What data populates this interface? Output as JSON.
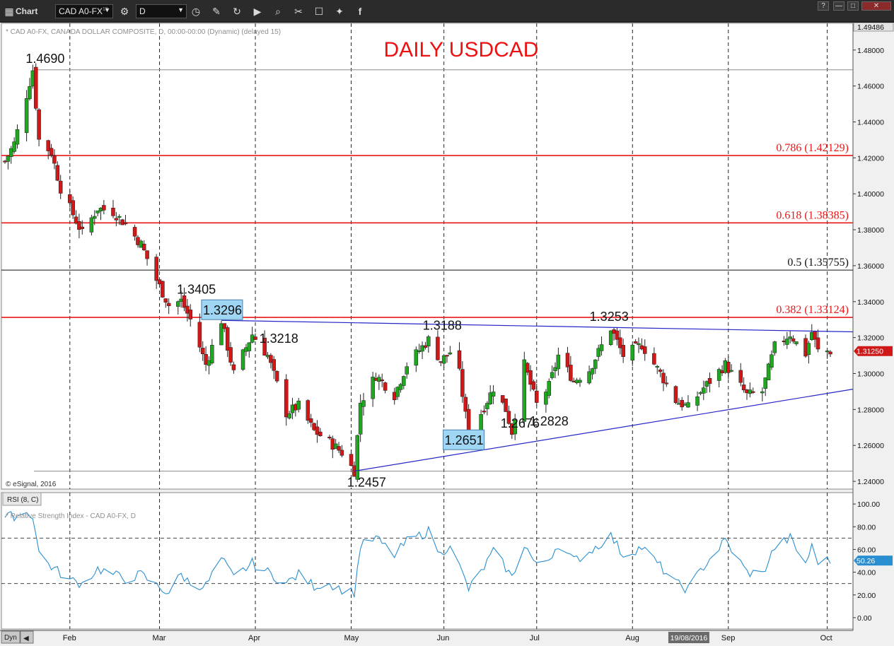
{
  "toolbar": {
    "app_label": "Chart",
    "symbol": "CAD A0-FX",
    "symbol_suffix": "15",
    "interval": "D",
    "icons": [
      "link-settings-icon",
      "clock-icon",
      "pencil-icon",
      "refresh-icon",
      "play-icon",
      "search-icon",
      "tools-icon",
      "comment-icon",
      "twitter-icon",
      "facebook-icon"
    ],
    "window_buttons": [
      "?",
      "—",
      "□",
      "✕"
    ]
  },
  "price_panel": {
    "header": "* CAD A0-FX, CANADA DOLLAR COMPOSITE, D, 00:00-00:00 (Dynamic) (delayed 15)",
    "copyright": "© eSignal, 2016",
    "top_price_badge": "1.49486",
    "last_price_badge": "1.31250",
    "title_annotation": "DAILY USDCAD",
    "y_ticks": [
      "1.48000",
      "1.46000",
      "1.44000",
      "1.42000",
      "1.40000",
      "1.38000",
      "1.36000",
      "1.34000",
      "1.32000",
      "1.30000",
      "1.28000",
      "1.26000",
      "1.24000"
    ]
  },
  "rsi_panel": {
    "tab_label": "RSI (8, C)",
    "header": "* Relative Strength Index - CAD A0-FX, D",
    "last_value_badge": "50.26",
    "y_ticks": [
      "100.00",
      "80.00",
      "60.00",
      "40.00",
      "20.00",
      "0.00"
    ]
  },
  "x_axis": {
    "mode_label": "Dyn",
    "months": [
      "Feb",
      "Mar",
      "Apr",
      "May",
      "Jun",
      "Jul",
      "Aug",
      "Sep",
      "Oct"
    ],
    "cursor_date": "19/08/2016"
  },
  "colors": {
    "up_candle": "#1fa81f",
    "down_candle": "#d01818",
    "fib_line": "#e81818",
    "trendline": "#2626c8",
    "rsi_line": "#2a8fd0",
    "highlight_box": "#9fd6f4"
  },
  "chart_data": {
    "type": "candlestick",
    "title": "DAILY USDCAD",
    "symbol": "CAD A0-FX",
    "interval": "D",
    "ylim": [
      1.2357,
      1.49486
    ],
    "last_price": 1.3125,
    "fib_levels": [
      {
        "label": "0.786 (1.42129)",
        "value": 1.42129,
        "color": "red"
      },
      {
        "label": "0.618 (1.38385)",
        "value": 1.38385,
        "color": "red"
      },
      {
        "label": "0.5 (1.35755)",
        "value": 1.35755,
        "color": "black"
      },
      {
        "label": "0.382 (1.33124)",
        "value": 1.33124,
        "color": "red"
      }
    ],
    "reference_levels": [
      1.469,
      1.2457
    ],
    "annotations": [
      {
        "text": "1.4690",
        "date": "2016-01-20",
        "value": 1.469,
        "boxed": false
      },
      {
        "text": "1.3405",
        "date": "2016-03-08",
        "value": 1.3405,
        "boxed": false
      },
      {
        "text": "1.3296",
        "date": "2016-03-21",
        "value": 1.3296,
        "boxed": true
      },
      {
        "text": "1.3218",
        "date": "2016-03-31",
        "value": 1.3218,
        "boxed": false
      },
      {
        "text": "1.2457",
        "date": "2016-05-03",
        "value": 1.2457,
        "boxed": false
      },
      {
        "text": "1.3188",
        "date": "2016-05-27",
        "value": 1.3188,
        "boxed": false
      },
      {
        "text": "1.2651",
        "date": "2016-06-09",
        "value": 1.2651,
        "boxed": true
      },
      {
        "text": "1.2676",
        "date": "2016-06-23",
        "value": 1.2676,
        "boxed": false
      },
      {
        "text": "1.2828",
        "date": "2016-07-01",
        "value": 1.2828,
        "boxed": false
      },
      {
        "text": "1.3253",
        "date": "2016-07-25",
        "value": 1.3253,
        "boxed": false
      }
    ],
    "trendlines": [
      {
        "name": "upper",
        "from": {
          "date": "2016-03-21",
          "value": 1.3296
        },
        "to": {
          "date": "2016-10-04",
          "value": 1.3232
        }
      },
      {
        "name": "lower",
        "from": {
          "date": "2016-05-03",
          "value": 1.2457
        },
        "to": {
          "date": "2016-10-04",
          "value": 1.2913
        }
      }
    ],
    "x_range": [
      "2016-01-11",
      "2016-10-04"
    ],
    "month_ticks": [
      "2016-02-01",
      "2016-03-01",
      "2016-04-01",
      "2016-05-02",
      "2016-06-01",
      "2016-07-01",
      "2016-08-01",
      "2016-09-01",
      "2016-10-03"
    ],
    "ohlc_keypoints": [
      [
        "2016-01-11",
        1.418
      ],
      [
        "2016-01-14",
        1.428
      ],
      [
        "2016-01-18",
        1.455
      ],
      [
        "2016-01-20",
        1.469
      ],
      [
        "2016-01-22",
        1.43
      ],
      [
        "2016-01-26",
        1.423
      ],
      [
        "2016-01-29",
        1.403
      ],
      [
        "2016-02-03",
        1.385
      ],
      [
        "2016-02-05",
        1.378
      ],
      [
        "2016-02-10",
        1.392
      ],
      [
        "2016-02-15",
        1.39
      ],
      [
        "2016-02-19",
        1.383
      ],
      [
        "2016-02-24",
        1.372
      ],
      [
        "2016-02-29",
        1.352
      ],
      [
        "2016-03-04",
        1.338
      ],
      [
        "2016-03-08",
        1.3405
      ],
      [
        "2016-03-11",
        1.33
      ],
      [
        "2016-03-16",
        1.305
      ],
      [
        "2016-03-21",
        1.3296
      ],
      [
        "2016-03-25",
        1.3
      ],
      [
        "2016-03-31",
        1.3218
      ],
      [
        "2016-04-05",
        1.31
      ],
      [
        "2016-04-11",
        1.278
      ],
      [
        "2016-04-15",
        1.282
      ],
      [
        "2016-04-20",
        1.268
      ],
      [
        "2016-04-25",
        1.262
      ],
      [
        "2016-04-29",
        1.256
      ],
      [
        "2016-05-03",
        1.2457
      ],
      [
        "2016-05-05",
        1.284
      ],
      [
        "2016-05-10",
        1.299
      ],
      [
        "2016-05-16",
        1.288
      ],
      [
        "2016-05-20",
        1.305
      ],
      [
        "2016-05-27",
        1.3188
      ],
      [
        "2016-05-31",
        1.307
      ],
      [
        "2016-06-03",
        1.312
      ],
      [
        "2016-06-06",
        1.3
      ],
      [
        "2016-06-09",
        1.2651
      ],
      [
        "2016-06-13",
        1.278
      ],
      [
        "2016-06-17",
        1.292
      ],
      [
        "2016-06-21",
        1.28
      ],
      [
        "2016-06-23",
        1.2676
      ],
      [
        "2016-06-27",
        1.305
      ],
      [
        "2016-07-01",
        1.2828
      ],
      [
        "2016-07-05",
        1.293
      ],
      [
        "2016-07-08",
        1.31
      ],
      [
        "2016-07-13",
        1.296
      ],
      [
        "2016-07-18",
        1.302
      ],
      [
        "2016-07-25",
        1.3253
      ],
      [
        "2016-07-29",
        1.31
      ],
      [
        "2016-08-04",
        1.316
      ],
      [
        "2016-08-10",
        1.3
      ],
      [
        "2016-08-15",
        1.285
      ],
      [
        "2016-08-19",
        1.281
      ],
      [
        "2016-08-24",
        1.292
      ],
      [
        "2016-08-31",
        1.305
      ],
      [
        "2016-09-07",
        1.288
      ],
      [
        "2016-09-12",
        1.29
      ],
      [
        "2016-09-16",
        1.315
      ],
      [
        "2016-09-21",
        1.322
      ],
      [
        "2016-09-23",
        1.317
      ],
      [
        "2016-09-26",
        1.311
      ],
      [
        "2016-09-28",
        1.323
      ],
      [
        "2016-09-30",
        1.3125
      ]
    ]
  },
  "rsi_data": {
    "type": "line",
    "ylim": [
      -10,
      110
    ],
    "levels": [
      70,
      30
    ],
    "last_value": 50.26,
    "keypoints": [
      [
        "2016-01-11",
        88
      ],
      [
        "2016-01-18",
        92
      ],
      [
        "2016-01-20",
        90
      ],
      [
        "2016-01-22",
        57
      ],
      [
        "2016-01-26",
        45
      ],
      [
        "2016-02-01",
        33
      ],
      [
        "2016-02-05",
        30
      ],
      [
        "2016-02-10",
        43
      ],
      [
        "2016-02-15",
        38
      ],
      [
        "2016-02-19",
        34
      ],
      [
        "2016-02-24",
        38
      ],
      [
        "2016-02-29",
        28
      ],
      [
        "2016-03-04",
        22
      ],
      [
        "2016-03-08",
        38
      ],
      [
        "2016-03-11",
        30
      ],
      [
        "2016-03-16",
        28
      ],
      [
        "2016-03-21",
        52
      ],
      [
        "2016-03-25",
        35
      ],
      [
        "2016-03-31",
        48
      ],
      [
        "2016-04-05",
        40
      ],
      [
        "2016-04-11",
        30
      ],
      [
        "2016-04-15",
        38
      ],
      [
        "2016-04-20",
        28
      ],
      [
        "2016-04-25",
        30
      ],
      [
        "2016-04-29",
        25
      ],
      [
        "2016-05-03",
        22
      ],
      [
        "2016-05-05",
        63
      ],
      [
        "2016-05-10",
        70
      ],
      [
        "2016-05-16",
        55
      ],
      [
        "2016-05-20",
        67
      ],
      [
        "2016-05-27",
        76
      ],
      [
        "2016-05-31",
        55
      ],
      [
        "2016-06-03",
        66
      ],
      [
        "2016-06-06",
        45
      ],
      [
        "2016-06-09",
        25
      ],
      [
        "2016-06-13",
        40
      ],
      [
        "2016-06-17",
        58
      ],
      [
        "2016-06-21",
        44
      ],
      [
        "2016-06-23",
        35
      ],
      [
        "2016-06-27",
        65
      ],
      [
        "2016-07-01",
        45
      ],
      [
        "2016-07-05",
        52
      ],
      [
        "2016-07-08",
        65
      ],
      [
        "2016-07-13",
        50
      ],
      [
        "2016-07-18",
        58
      ],
      [
        "2016-07-25",
        72
      ],
      [
        "2016-07-29",
        55
      ],
      [
        "2016-08-04",
        62
      ],
      [
        "2016-08-10",
        45
      ],
      [
        "2016-08-15",
        30
      ],
      [
        "2016-08-19",
        25
      ],
      [
        "2016-08-24",
        45
      ],
      [
        "2016-08-31",
        68
      ],
      [
        "2016-09-07",
        40
      ],
      [
        "2016-09-12",
        38
      ],
      [
        "2016-09-16",
        62
      ],
      [
        "2016-09-21",
        70
      ],
      [
        "2016-09-23",
        60
      ],
      [
        "2016-09-26",
        48
      ],
      [
        "2016-09-28",
        62
      ],
      [
        "2016-09-30",
        50
      ]
    ]
  }
}
